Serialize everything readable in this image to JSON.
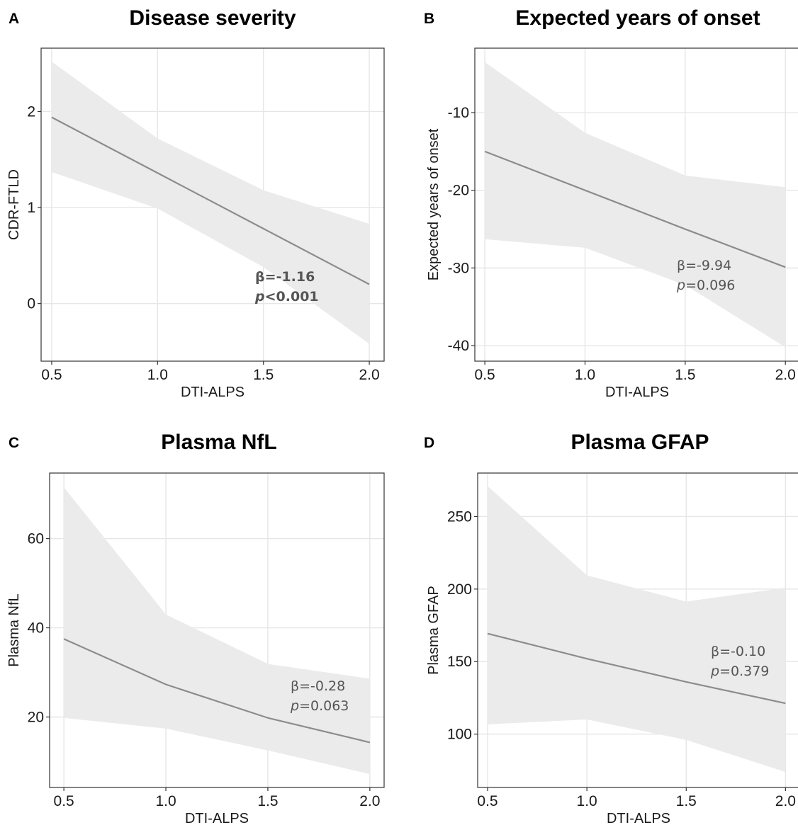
{
  "chart_data": [
    {
      "panel": "A",
      "type": "line",
      "title": "Disease severity",
      "xlabel": "DTI-ALPS",
      "ylabel": "CDR-FTLD",
      "x": [
        0.5,
        1.0,
        1.5,
        2.0
      ],
      "series": [
        {
          "values": [
            1.94,
            1.36,
            0.78,
            0.2
          ],
          "ci_upper": [
            2.52,
            1.72,
            1.18,
            0.83
          ],
          "ci_lower": [
            1.37,
            0.99,
            0.38,
            -0.42
          ]
        }
      ],
      "xticks": [
        "0.5",
        "1.0",
        "1.5",
        "2.0"
      ],
      "yticks": [
        "0",
        "1",
        "2"
      ],
      "ytick_values": [
        0,
        1,
        2
      ],
      "xlim": [
        0.45,
        2.07
      ],
      "ylim": [
        -0.6,
        2.66
      ],
      "annotation": {
        "beta": "β=-1.16",
        "p_italic": "p",
        "p_rest": "<0.001",
        "bold": true
      },
      "grid": true
    },
    {
      "panel": "B",
      "type": "line",
      "title": "Expected years of onset",
      "xlabel": "DTI-ALPS",
      "ylabel": "Expected years of onset",
      "x": [
        0.5,
        1.0,
        1.5,
        2.0
      ],
      "series": [
        {
          "values": [
            -15.0,
            -20.0,
            -25.0,
            -29.9
          ],
          "ci_upper": [
            -3.5,
            -12.6,
            -18.1,
            -19.6
          ],
          "ci_lower": [
            -26.3,
            -27.4,
            -32.2,
            -40.2
          ]
        }
      ],
      "xticks": [
        "0.5",
        "1.0",
        "1.5",
        "2.0"
      ],
      "yticks": [
        "-40",
        "-30",
        "-20",
        "-10"
      ],
      "ytick_values": [
        -40,
        -30,
        -20,
        -10
      ],
      "xlim": [
        0.45,
        2.07
      ],
      "ylim": [
        -42.0,
        -1.7
      ],
      "annotation": {
        "beta": "β=-9.94",
        "p_italic": "p",
        "p_rest": "=0.096",
        "bold": false
      },
      "grid": true
    },
    {
      "panel": "C",
      "type": "line",
      "title": "Plasma NfL",
      "xlabel": "DTI-ALPS",
      "ylabel": "Plasma NfL",
      "x": [
        0.5,
        1.0,
        1.5,
        2.0
      ],
      "series": [
        {
          "values": [
            37.5,
            27.3,
            19.8,
            14.3
          ],
          "ci_upper": [
            71.5,
            43.0,
            31.9,
            28.6
          ],
          "ci_lower": [
            19.8,
            17.4,
            12.5,
            7.2
          ]
        }
      ],
      "xticks": [
        "0.5",
        "1.0",
        "1.5",
        "2.0"
      ],
      "yticks": [
        "20",
        "40",
        "60"
      ],
      "ytick_values": [
        20,
        40,
        60
      ],
      "xlim": [
        0.43,
        2.07
      ],
      "ylim": [
        4.2,
        74.7
      ],
      "annotation": {
        "beta": "β=-0.28",
        "p_italic": "p",
        "p_rest": "=0.063",
        "bold": false
      },
      "grid": true
    },
    {
      "panel": "D",
      "type": "line",
      "title": "Plasma GFAP",
      "xlabel": "DTI-ALPS",
      "ylabel": "Plasma GFAP",
      "x": [
        0.5,
        1.0,
        1.5,
        2.0
      ],
      "series": [
        {
          "values": [
            169.3,
            152.0,
            136.0,
            121.2
          ],
          "ci_upper": [
            271.0,
            209.5,
            191.4,
            200.9
          ],
          "ci_lower": [
            106.7,
            110.1,
            96.0,
            73.9
          ]
        }
      ],
      "xticks": [
        "0.5",
        "1.0",
        "1.5",
        "2.0"
      ],
      "yticks": [
        "100",
        "150",
        "200",
        "250"
      ],
      "ytick_values": [
        100,
        150,
        200,
        250
      ],
      "xlim": [
        0.45,
        2.07
      ],
      "ylim": [
        63.2,
        280.0
      ],
      "annotation": {
        "beta": "β=-0.10",
        "p_italic": "p",
        "p_rest": "=0.379",
        "bold": false
      },
      "grid": true
    }
  ]
}
